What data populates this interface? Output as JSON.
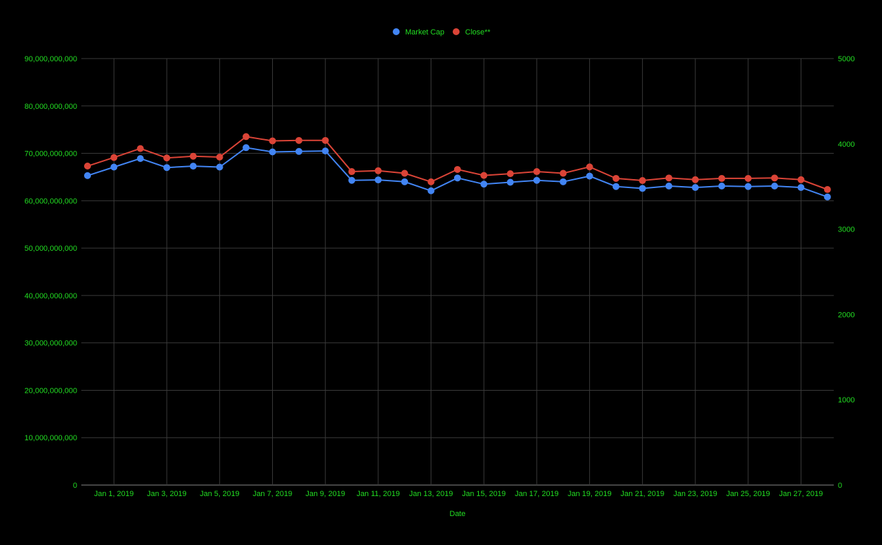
{
  "chart_data": {
    "type": "line",
    "title": "",
    "xlabel": "Date",
    "ylabel_left": "",
    "ylabel_right": "",
    "legend_position": "top",
    "grid": true,
    "colors": {
      "background": "#000000",
      "text": "#22dd22",
      "grid": "#3a3a3a",
      "market_cap": "#4285f4",
      "close": "#db4437"
    },
    "x": [
      "Dec 31, 2018",
      "Jan 1, 2019",
      "Jan 2, 2019",
      "Jan 3, 2019",
      "Jan 4, 2019",
      "Jan 5, 2019",
      "Jan 6, 2019",
      "Jan 7, 2019",
      "Jan 8, 2019",
      "Jan 9, 2019",
      "Jan 10, 2019",
      "Jan 11, 2019",
      "Jan 12, 2019",
      "Jan 13, 2019",
      "Jan 14, 2019",
      "Jan 15, 2019",
      "Jan 16, 2019",
      "Jan 17, 2019",
      "Jan 18, 2019",
      "Jan 19, 2019",
      "Jan 20, 2019",
      "Jan 21, 2019",
      "Jan 22, 2019",
      "Jan 23, 2019",
      "Jan 24, 2019",
      "Jan 25, 2019",
      "Jan 26, 2019",
      "Jan 27, 2019",
      "Jan 28, 2019"
    ],
    "x_tick_labels": [
      "Jan 1, 2019",
      "Jan 3, 2019",
      "Jan 5, 2019",
      "Jan 7, 2019",
      "Jan 9, 2019",
      "Jan 11, 2019",
      "Jan 13, 2019",
      "Jan 15, 2019",
      "Jan 17, 2019",
      "Jan 19, 2019",
      "Jan 21, 2019",
      "Jan 23, 2019",
      "Jan 25, 2019",
      "Jan 27, 2019"
    ],
    "x_tick_indices": [
      1,
      3,
      5,
      7,
      9,
      11,
      13,
      15,
      17,
      19,
      21,
      23,
      25,
      27
    ],
    "y_left": {
      "min": 0,
      "max": 90000000000,
      "ticks": [
        0,
        10000000000,
        20000000000,
        30000000000,
        40000000000,
        50000000000,
        60000000000,
        70000000000,
        80000000000,
        90000000000
      ],
      "tick_labels": [
        "0",
        "10,000,000,000",
        "20,000,000,000",
        "30,000,000,000",
        "40,000,000,000",
        "50,000,000,000",
        "60,000,000,000",
        "70,000,000,000",
        "80,000,000,000",
        "90,000,000,000"
      ]
    },
    "y_right": {
      "min": 0,
      "max": 5000,
      "ticks": [
        0,
        1000,
        2000,
        3000,
        4000,
        5000
      ],
      "tick_labels": [
        "0",
        "1000",
        "2000",
        "3000",
        "4000",
        "5000"
      ]
    },
    "series": [
      {
        "name": "Market Cap",
        "axis": "left",
        "color": "#4285f4",
        "values": [
          65300000000,
          67100000000,
          68900000000,
          67000000000,
          67300000000,
          67100000000,
          71200000000,
          70300000000,
          70400000000,
          70500000000,
          64300000000,
          64400000000,
          64000000000,
          62100000000,
          64800000000,
          63500000000,
          63900000000,
          64300000000,
          64000000000,
          65200000000,
          63000000000,
          62600000000,
          63100000000,
          62800000000,
          63100000000,
          63000000000,
          63100000000,
          62800000000,
          60800000000
        ]
      },
      {
        "name": "Close**",
        "axis": "right",
        "color": "#db4437",
        "values": [
          3740,
          3840,
          3945,
          3835,
          3855,
          3845,
          4085,
          4035,
          4040,
          4040,
          3675,
          3685,
          3655,
          3555,
          3700,
          3630,
          3650,
          3675,
          3655,
          3730,
          3595,
          3570,
          3600,
          3580,
          3595,
          3595,
          3600,
          3580,
          3465
        ]
      }
    ]
  }
}
